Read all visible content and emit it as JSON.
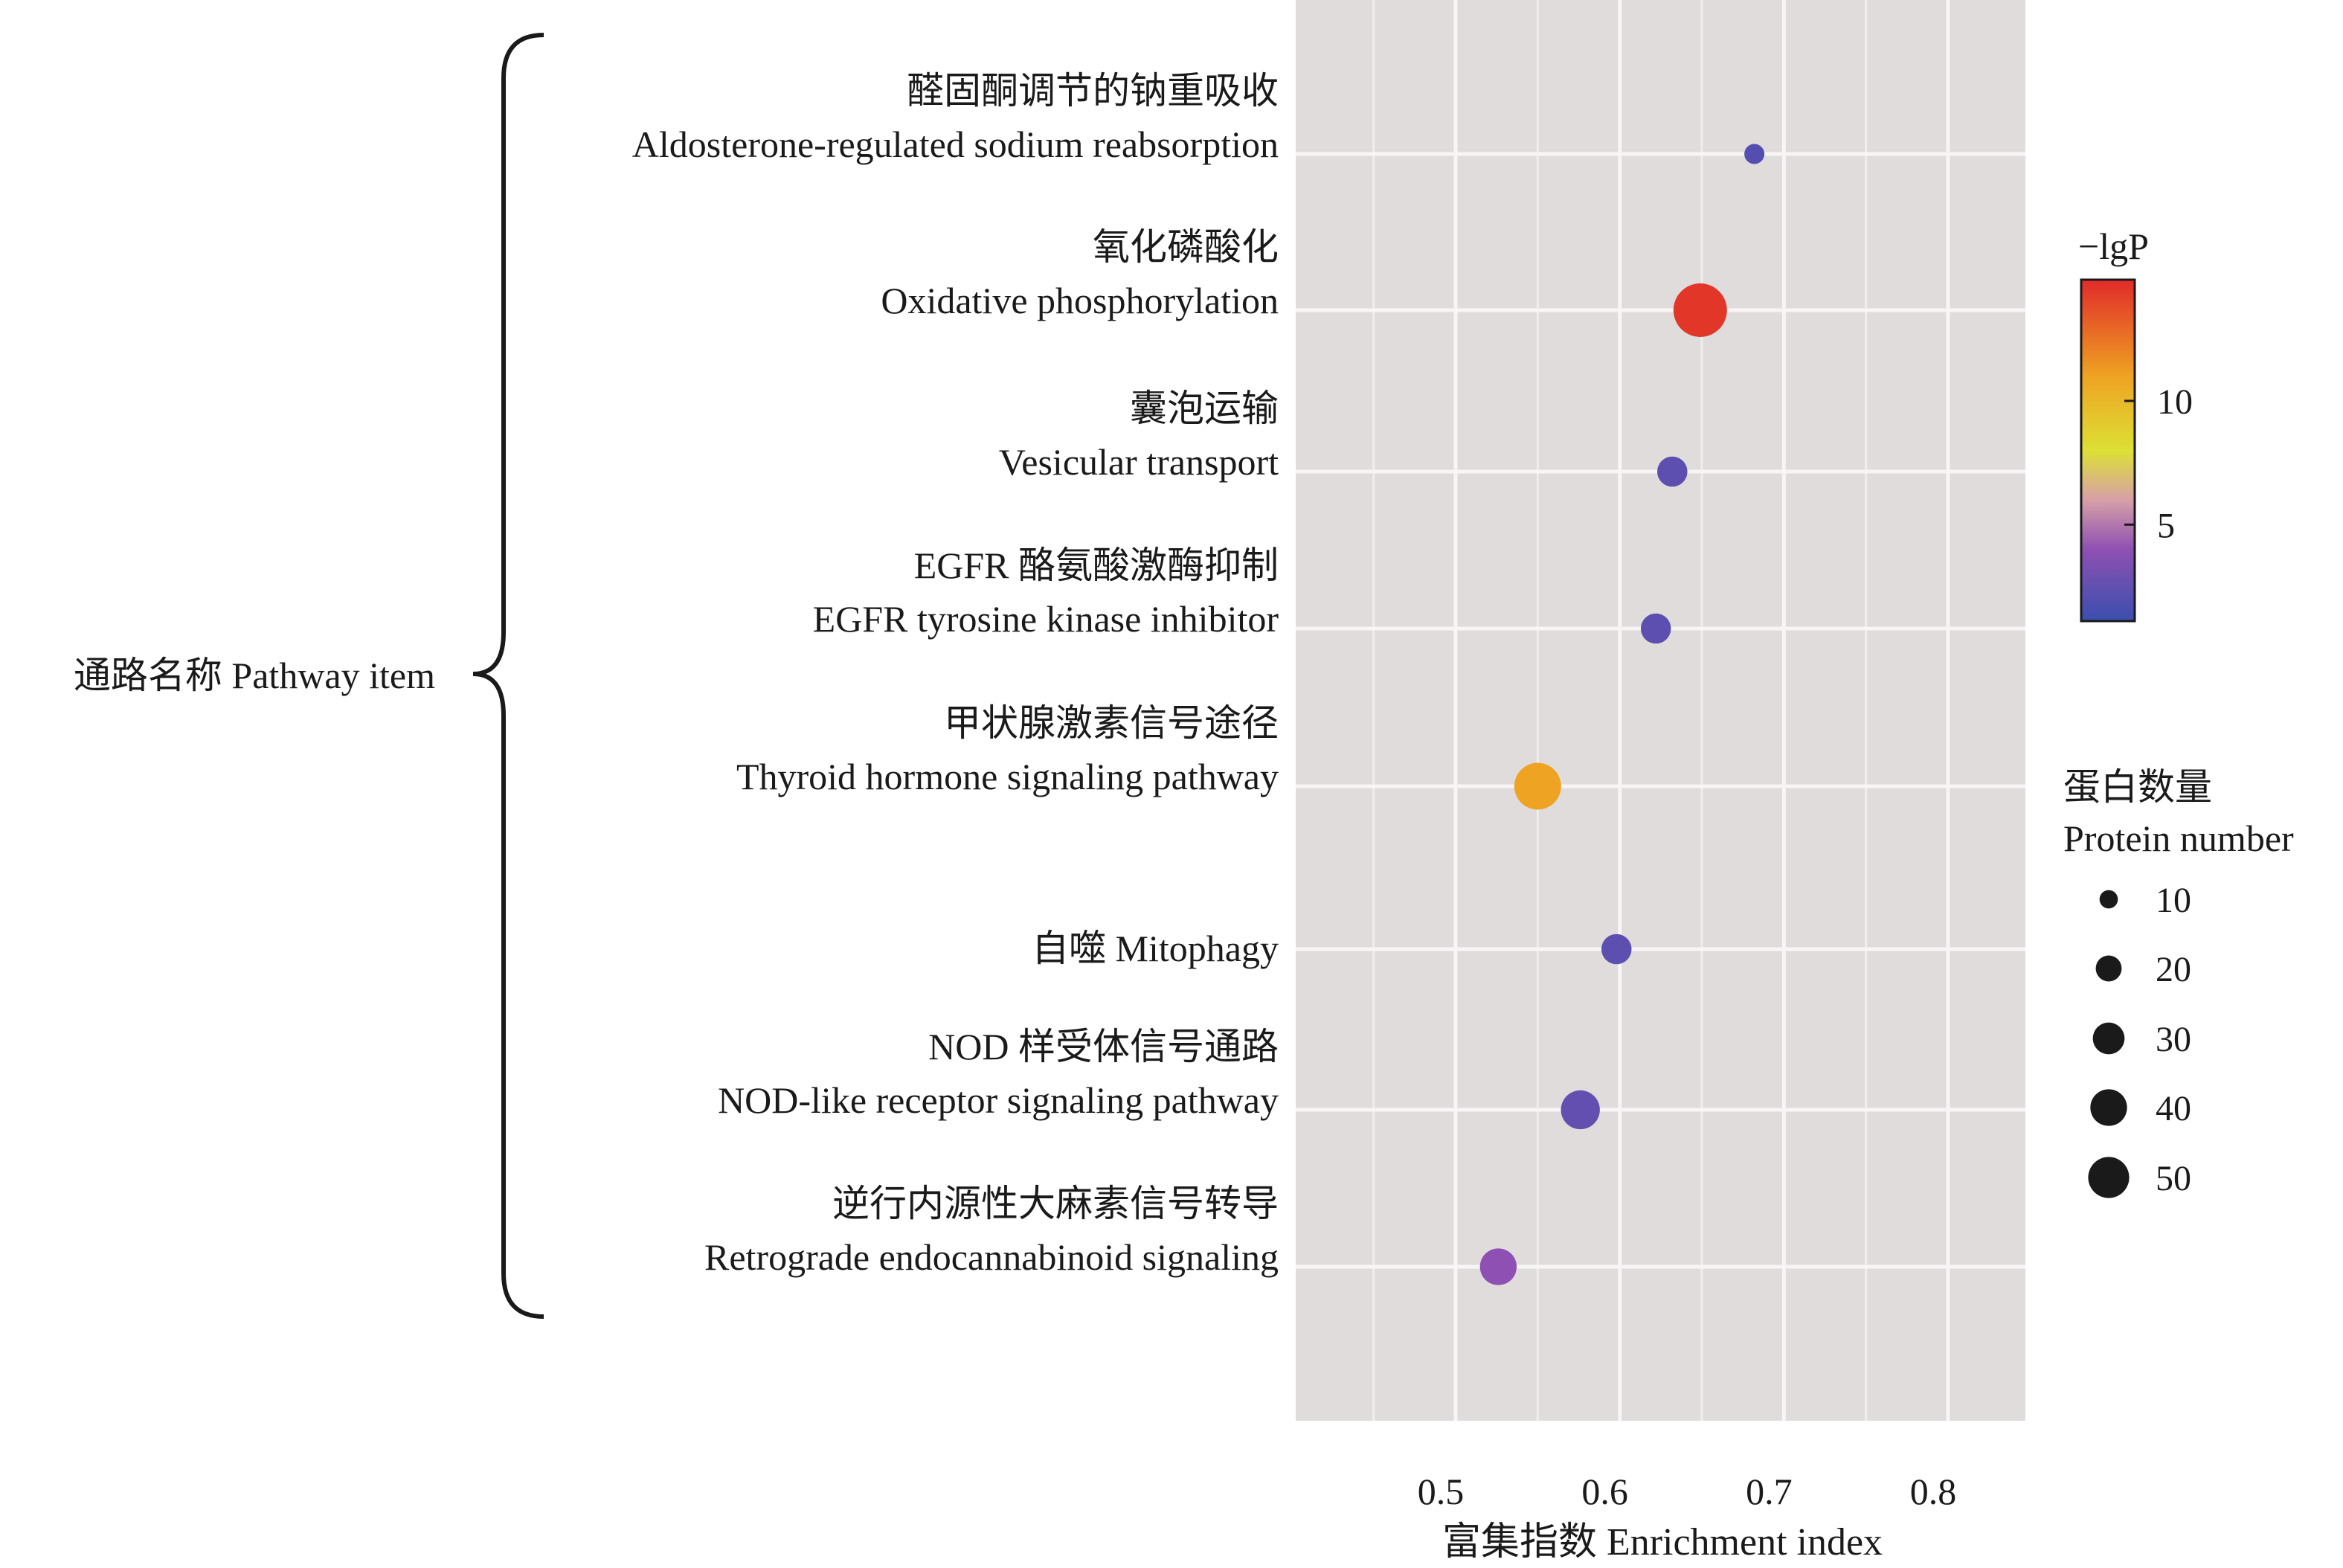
{
  "chart_data": {
    "type": "scatter",
    "title": "",
    "xlabel": "富集指数  Enrichment index",
    "ylabel": "通路名称 Pathway item",
    "xlim": [
      0.4026,
      0.847
    ],
    "xticks": [
      0.5,
      0.6,
      0.7,
      0.8
    ],
    "xtick_labels": [
      "0.5",
      "0.6",
      "0.7",
      "0.8"
    ],
    "grid": true,
    "categories": [
      {
        "zh": "醛固酮调节的钠重吸收",
        "en": "Aldosterone-regulated sodium reabsorption"
      },
      {
        "zh": "氧化磷酸化",
        "en": "Oxidative phosphorylation"
      },
      {
        "zh": "囊泡运输",
        "en": "Vesicular transport"
      },
      {
        "zh": "EGFR 酪氨酸激酶抑制",
        "en": "EGFR tyrosine kinase inhibitor"
      },
      {
        "zh": "甲状腺激素信号途径",
        "en": "Thyroid hormone signaling pathway"
      },
      {
        "zh": "",
        "en": "自噬 Mitophagy"
      },
      {
        "zh": "NOD 样受体信号通路",
        "en": "NOD-like receptor signaling pathway"
      },
      {
        "zh": "逆行内源性大麻素信号转导",
        "en": "Retrograde endocannabinoid signaling"
      }
    ],
    "series": [
      {
        "name": "pathways",
        "enrichment": [
          0.682,
          0.649,
          0.632,
          0.622,
          0.55,
          0.598,
          0.576,
          0.526
        ],
        "protein_number": [
          12,
          85,
          27,
          27,
          65,
          27,
          45,
          40
        ],
        "neg_lg_p": [
          2.0,
          14.5,
          2.3,
          2.3,
          11.0,
          2.3,
          2.5,
          4.0
        ]
      }
    ],
    "color_legend": {
      "title": "−lgP",
      "range": [
        1.1,
        14.9
      ],
      "ticks": [
        5,
        10
      ],
      "tick_labels": [
        "5",
        "10"
      ],
      "placement": "right"
    },
    "size_legend": {
      "title_zh": "蛋白数量",
      "title_en": "Protein number",
      "values": [
        10,
        20,
        30,
        40,
        50
      ],
      "labels": [
        "10",
        "20",
        "30",
        "40",
        "50"
      ],
      "placement": "right"
    }
  },
  "colors": {
    "panel": "#e0dcdc",
    "grid": "#f7f5f5",
    "low": "#3a4fae",
    "mid1": "#8e50b2",
    "mid2": "#d7a0a8",
    "mid3": "#dde035",
    "mid4": "#eea322",
    "high": "#e12a2a",
    "legend_dot": "#1a1a1a"
  }
}
